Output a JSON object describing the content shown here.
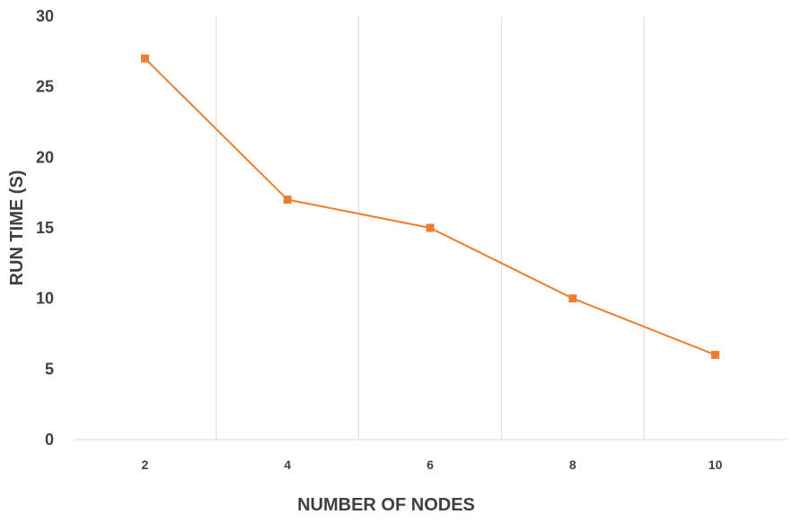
{
  "chart_data": {
    "type": "line",
    "title": "",
    "xlabel": "NUMBER OF NODES",
    "ylabel": "RUN TIME (S)",
    "categories": [
      "2",
      "4",
      "6",
      "8",
      "10"
    ],
    "series": [
      {
        "values": [
          27,
          17,
          15,
          10,
          6
        ],
        "color": "#ED7D31",
        "marker": "square"
      }
    ],
    "ylim": [
      0,
      30
    ],
    "yticks": [
      "0",
      "5",
      "10",
      "15",
      "20",
      "25",
      "30"
    ],
    "grid": "vertical",
    "legend": "none"
  }
}
